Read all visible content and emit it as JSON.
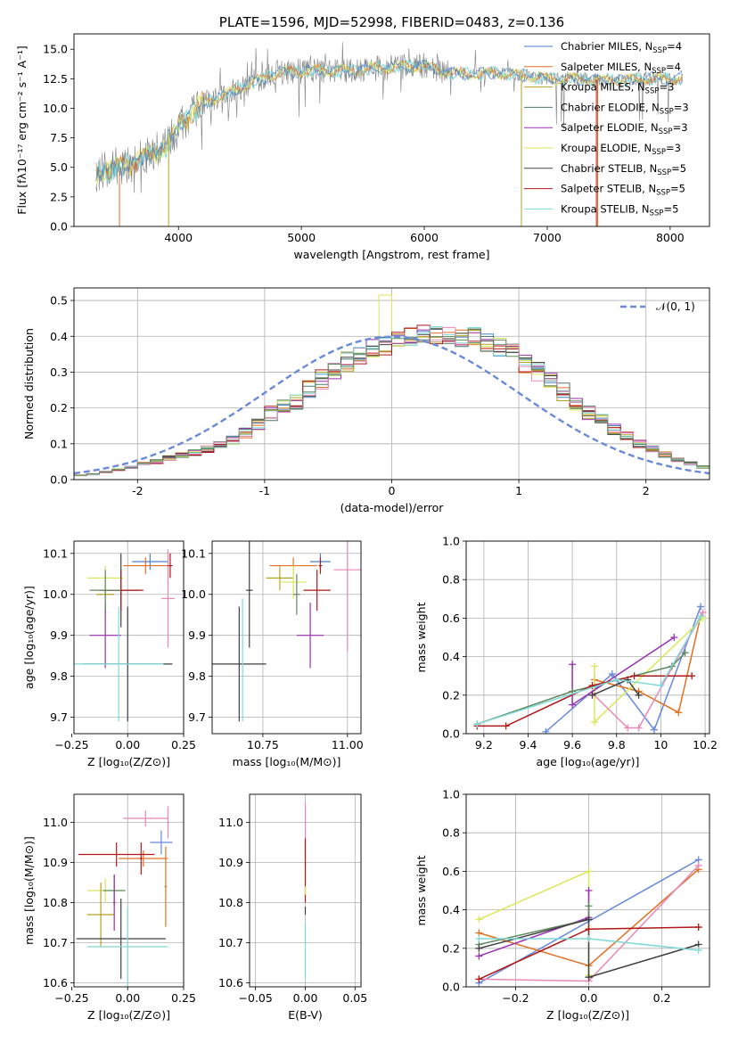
{
  "colors": {
    "Chabrier MILES": "#4682c8",
    "Salpeter MILES": "#e07020",
    "Kroupa MILES": "#b8a020",
    "Chabrier ELODIE": "#4a7a6a",
    "Salpeter ELODIE": "#9a30b0",
    "Kroupa ELODIE": "#d8e858",
    "Chabrier STELIB": "#404040",
    "Salpeter STELIB": "#b01818",
    "Kroupa STELIB": "#80d8d8",
    "extra_blue": "#6688dd",
    "extra_pink": "#e888b8",
    "extra_green": "#608a60",
    "gauss": "#6a8ad8"
  },
  "chart_data": [
    {
      "id": "spectrum",
      "type": "line",
      "title": "PLATE=1596, MJD=52998, FIBERID=0483, z=0.136",
      "xlabel": "wavelength [Angstrom, rest frame]",
      "ylabel": "Flux [fλ10⁻¹⁷ erg cm⁻² s⁻¹ A⁻¹]",
      "xlim": [
        3150,
        8320
      ],
      "ylim": [
        0,
        16.3
      ],
      "xticks": [
        4000,
        5000,
        6000,
        7000,
        8000
      ],
      "yticks": [
        0.0,
        2.5,
        5.0,
        7.5,
        10.0,
        12.5,
        15.0
      ],
      "grid": false,
      "legend_position": "top-right",
      "continuum_x": [
        3330,
        3500,
        3700,
        3900,
        4000,
        4200,
        4400,
        4600,
        4800,
        5000,
        5200,
        5400,
        5600,
        5800,
        6000,
        6200,
        6400,
        6600,
        6800,
        7000,
        7200,
        7400,
        7600,
        7800,
        8000,
        8100
      ],
      "continuum_y": [
        4.6,
        4.9,
        5.8,
        6.8,
        8.4,
        10.4,
        11.2,
        12.2,
        13.0,
        13.1,
        13.2,
        13.2,
        13.4,
        13.5,
        13.6,
        13.0,
        12.9,
        13.0,
        12.8,
        12.5,
        12.5,
        12.4,
        12.4,
        12.5,
        12.5,
        12.6
      ],
      "legend": [
        {
          "label": "Chabrier MILES, N",
          "sub": "SSP",
          "suffix": "=4"
        },
        {
          "label": "Salpeter MILES, N",
          "sub": "SSP",
          "suffix": "=4"
        },
        {
          "label": "Kroupa MILES, N",
          "sub": "SSP",
          "suffix": "=3"
        },
        {
          "label": "Chabrier ELODIE, N",
          "sub": "SSP",
          "suffix": "=3"
        },
        {
          "label": "Salpeter ELODIE, N",
          "sub": "SSP",
          "suffix": "=3"
        },
        {
          "label": "Kroupa ELODIE, N",
          "sub": "SSP",
          "suffix": "=3"
        },
        {
          "label": "Chabrier STELIB, N",
          "sub": "SSP",
          "suffix": "=5"
        },
        {
          "label": "Salpeter STELIB, N",
          "sub": "SSP",
          "suffix": "=5"
        },
        {
          "label": "Kroupa STELIB, N",
          "sub": "SSP",
          "suffix": "=5"
        }
      ]
    },
    {
      "id": "residuals",
      "type": "line",
      "xlabel": "(data-model)/error",
      "ylabel": "Normed distribution",
      "xlim": [
        -2.5,
        2.5
      ],
      "ylim": [
        0,
        0.535
      ],
      "xticks": [
        -2,
        -1,
        0,
        1,
        2
      ],
      "yticks": [
        0.0,
        0.1,
        0.2,
        0.3,
        0.4,
        0.5
      ],
      "grid": true,
      "legend_position": "top-right",
      "legend": [
        "𝒩(0, 1)"
      ],
      "bin_edges_start": -2.5,
      "bin_width": 0.1,
      "base_hist": [
        0.012,
        0.015,
        0.022,
        0.028,
        0.035,
        0.045,
        0.05,
        0.06,
        0.068,
        0.075,
        0.085,
        0.095,
        0.11,
        0.13,
        0.155,
        0.185,
        0.2,
        0.215,
        0.25,
        0.28,
        0.3,
        0.33,
        0.35,
        0.37,
        0.37,
        0.39,
        0.4,
        0.41,
        0.4,
        0.405,
        0.39,
        0.4,
        0.385,
        0.37,
        0.355,
        0.325,
        0.3,
        0.27,
        0.245,
        0.215,
        0.185,
        0.165,
        0.14,
        0.12,
        0.1,
        0.085,
        0.07,
        0.055,
        0.045,
        0.035
      ]
    },
    {
      "id": "age-vs-Z",
      "type": "scatter",
      "xlabel": "Z [log₁₀(Z/Z⊙)]",
      "ylabel": "age  [log₁₀(age/yr)]",
      "xlim": [
        -0.24,
        0.25
      ],
      "ylim": [
        9.66,
        10.13
      ],
      "xticks": [
        -0.25,
        0.0,
        0.25
      ],
      "xticklabels": [
        "−0.25",
        "0.00",
        "0.25"
      ],
      "yticks": [
        9.7,
        9.8,
        9.9,
        10.0,
        10.1
      ],
      "grid": true,
      "points": [
        {
          "series": "Chabrier MILES",
          "x": 0.1,
          "xerr": 0.08,
          "y": 10.08,
          "yerr": 0.02
        },
        {
          "series": "Salpeter MILES",
          "x": 0.08,
          "xerr": 0.1,
          "y": 10.07,
          "yerr": 0.02
        },
        {
          "series": "Kroupa MILES",
          "x": -0.1,
          "xerr": 0.04,
          "y": 10.0,
          "yerr": 0.05
        },
        {
          "series": "extra_pink",
          "x": 0.18,
          "xerr": 0.03,
          "y": 9.99,
          "yerr": 0.12
        },
        {
          "series": "Kroupa ELODIE",
          "x": -0.1,
          "xerr": 0.08,
          "y": 10.04,
          "yerr": 0.03
        },
        {
          "series": "Salpeter ELODIE",
          "x": -0.1,
          "xerr": 0.07,
          "y": 9.9,
          "yerr": 0.08
        },
        {
          "series": "Chabrier STELIB",
          "x": 0.0,
          "xerr": 0.2,
          "y": 9.83,
          "yerr": 0.14
        },
        {
          "series": "Chabrier STELIB",
          "x": -0.03,
          "xerr": 0.08,
          "y": 10.01,
          "yerr": 0.09
        },
        {
          "series": "Salpeter STELIB",
          "x": -0.03,
          "xerr": 0.1,
          "y": 10.01,
          "yerr": 0.05
        },
        {
          "series": "Salpeter STELIB",
          "x": 0.19,
          "xerr": 0.01,
          "y": 10.07,
          "yerr": 0.03
        },
        {
          "series": "Kroupa STELIB",
          "x": -0.04,
          "xerr": 0.2,
          "y": 9.83,
          "yerr": 0.14
        },
        {
          "series": "extra_green",
          "x": -0.1,
          "xerr": 0.07,
          "y": 10.01,
          "yerr": 0.05
        }
      ]
    },
    {
      "id": "age-vs-mass",
      "type": "scatter",
      "xlabel": "mass [log₁₀(M/M⊙)]",
      "ylabel": "",
      "xlim": [
        10.6,
        11.04
      ],
      "ylim": [
        9.66,
        10.13
      ],
      "xticks": [
        10.75,
        11.0
      ],
      "xticklabels": [
        "10.75",
        "11.00"
      ],
      "yticks": [
        9.7,
        9.8,
        9.9,
        10.0,
        10.1
      ],
      "grid": true,
      "points": [
        {
          "series": "Chabrier MILES",
          "x": 10.92,
          "xerr": 0.03,
          "y": 10.08,
          "yerr": 0.02
        },
        {
          "series": "Salpeter MILES",
          "x": 10.84,
          "xerr": 0.07,
          "y": 10.07,
          "yerr": 0.02
        },
        {
          "series": "Kroupa MILES",
          "x": 10.8,
          "xerr": 0.04,
          "y": 10.04,
          "yerr": 0.03
        },
        {
          "series": "extra_pink",
          "x": 11.0,
          "xerr": 0.04,
          "y": 10.06,
          "yerr": 0.2
        },
        {
          "series": "Kroupa ELODIE",
          "x": 10.84,
          "xerr": 0.04,
          "y": 10.03,
          "yerr": 0.04
        },
        {
          "series": "Salpeter ELODIE",
          "x": 10.89,
          "xerr": 0.04,
          "y": 9.9,
          "yerr": 0.08
        },
        {
          "series": "Chabrier STELIB",
          "x": 10.68,
          "xerr": 0.08,
          "y": 9.83,
          "yerr": 0.14
        },
        {
          "series": "Chabrier STELIB",
          "x": 10.71,
          "xerr": 0.01,
          "y": 10.01,
          "yerr": 0.14
        },
        {
          "series": "Salpeter STELIB",
          "x": 10.91,
          "xerr": 0.04,
          "y": 10.01,
          "yerr": 0.05
        },
        {
          "series": "Salpeter STELIB",
          "x": 10.92,
          "xerr": 0.005,
          "y": 10.07,
          "yerr": 0.02
        },
        {
          "series": "Kroupa STELIB",
          "x": 10.69,
          "xerr": 0.0,
          "y": 9.84,
          "yerr": 0.15
        },
        {
          "series": "extra_green",
          "x": 10.85,
          "xerr": 0.01,
          "y": 10.0,
          "yerr": 0.05
        }
      ]
    },
    {
      "id": "massweight-vs-age",
      "type": "line",
      "xlabel": "age  [log₁₀(age/yr)]",
      "ylabel": "mass weight",
      "xlim": [
        9.12,
        10.22
      ],
      "ylim": [
        0,
        1.0
      ],
      "xticks": [
        9.2,
        9.4,
        9.6,
        9.8,
        10.0,
        10.2
      ],
      "yticks": [
        0.0,
        0.2,
        0.4,
        0.6,
        0.8,
        1.0
      ],
      "grid": true,
      "series": [
        {
          "name": "extra_blue",
          "x": [
            9.48,
            9.78,
            9.97,
            10.18
          ],
          "y": [
            0.01,
            0.31,
            0.02,
            0.66
          ]
        },
        {
          "name": "Salpeter MILES",
          "x": [
            9.7,
            9.9,
            10.08,
            10.18
          ],
          "y": [
            0.28,
            0.22,
            0.11,
            0.61
          ]
        },
        {
          "name": "Kroupa ELODIE",
          "x": [
            9.7,
            9.7,
            10.19
          ],
          "y": [
            0.35,
            0.06,
            0.6
          ]
        },
        {
          "name": "extra_pink",
          "x": [
            9.69,
            9.85,
            9.9,
            10.19
          ],
          "y": [
            0.21,
            0.03,
            0.03,
            0.63
          ]
        },
        {
          "name": "Salpeter ELODIE",
          "x": [
            9.6,
            9.6,
            10.06
          ],
          "y": [
            0.36,
            0.15,
            0.5
          ]
        },
        {
          "name": "extra_green",
          "x": [
            9.17,
            9.6,
            10.05,
            10.11
          ],
          "y": [
            0.05,
            0.22,
            0.35,
            0.42
          ]
        },
        {
          "name": "Chabrier STELIB",
          "x": [
            9.69,
            9.85,
            9.9
          ],
          "y": [
            0.2,
            0.28,
            0.2
          ]
        },
        {
          "name": "Salpeter STELIB",
          "x": [
            9.17,
            9.3,
            9.69,
            9.88,
            10.14
          ],
          "y": [
            0.04,
            0.04,
            0.25,
            0.3,
            0.3
          ]
        },
        {
          "name": "Kroupa STELIB",
          "x": [
            9.17,
            9.8,
            10.0,
            10.18
          ],
          "y": [
            0.05,
            0.28,
            0.25,
            0.61
          ]
        }
      ]
    },
    {
      "id": "mass-vs-Z",
      "type": "scatter",
      "xlabel": "Z [log₁₀(Z/Z⊙)]",
      "ylabel": "mass [log₁₀(M/M⊙)]",
      "xlim": [
        -0.24,
        0.25
      ],
      "ylim": [
        10.59,
        11.07
      ],
      "xticks": [
        -0.25,
        0.0,
        0.25
      ],
      "xticklabels": [
        "−0.25",
        "0.00",
        "0.25"
      ],
      "yticks": [
        10.6,
        10.7,
        10.8,
        10.9,
        11.0
      ],
      "grid": true,
      "points": [
        {
          "series": "extra_blue",
          "x": 0.15,
          "xerr": 0.05,
          "y": 10.95,
          "yerr": 0.03
        },
        {
          "series": "Salpeter MILES",
          "x": 0.07,
          "xerr": 0.11,
          "y": 10.91,
          "yerr": 0.02
        },
        {
          "series": "Salpeter MILES",
          "x": 0.17,
          "xerr": 0.005,
          "y": 10.84,
          "yerr": 0.1
        },
        {
          "series": "Kroupa ELODIE",
          "x": -0.1,
          "xerr": 0.08,
          "y": 10.83,
          "yerr": 0.03
        },
        {
          "series": "Kroupa MILES",
          "x": -0.12,
          "xerr": 0.06,
          "y": 10.77,
          "yerr": 0.08
        },
        {
          "series": "extra_pink",
          "x": 0.08,
          "xerr": 0.1,
          "y": 11.01,
          "yerr": 0.02
        },
        {
          "series": "extra_pink",
          "x": 0.18,
          "xerr": 0.005,
          "y": 11.0,
          "yerr": 0.04
        },
        {
          "series": "extra_green",
          "x": -0.06,
          "xerr": 0.05,
          "y": 10.83,
          "yerr": 0.04
        },
        {
          "series": "Salpeter ELODIE",
          "x": -0.06,
          "xerr": 0.005,
          "y": 10.8,
          "yerr": 0.07
        },
        {
          "series": "Chabrier STELIB",
          "x": -0.03,
          "xerr": 0.2,
          "y": 10.71,
          "yerr": 0.1
        },
        {
          "series": "Salpeter STELIB",
          "x": -0.05,
          "xerr": 0.17,
          "y": 10.92,
          "yerr": 0.03
        },
        {
          "series": "Salpeter STELIB",
          "x": 0.06,
          "xerr": 0.005,
          "y": 10.91,
          "yerr": 0.04
        },
        {
          "series": "Kroupa STELIB",
          "x": 0.0,
          "xerr": 0.18,
          "y": 10.69,
          "yerr": 0.1
        }
      ]
    },
    {
      "id": "mass-vs-EBV",
      "type": "scatter",
      "xlabel": "E(B-V)",
      "ylabel": "",
      "xlim": [
        -0.056,
        0.056
      ],
      "ylim": [
        10.59,
        11.07
      ],
      "xticks": [
        -0.05,
        0.0,
        0.05
      ],
      "xticklabels": [
        "−0.05",
        "0.00",
        "0.05"
      ],
      "yticks": [
        10.6,
        10.7,
        10.8,
        10.9,
        11.0
      ],
      "grid": true,
      "points": [
        {
          "series": "extra_pink",
          "x": 0.0,
          "xerr": 0.0,
          "y": 10.97,
          "yerr": 0.08
        },
        {
          "series": "Salpeter STELIB",
          "x": 0.0,
          "xerr": 0.0,
          "y": 10.88,
          "yerr": 0.08
        },
        {
          "series": "Kroupa ELODIE",
          "x": 0.0,
          "xerr": 0.0,
          "y": 10.83,
          "yerr": 0.01
        },
        {
          "series": "Chabrier STELIB",
          "x": 0.0,
          "xerr": 0.0,
          "y": 10.78,
          "yerr": 0.01
        },
        {
          "series": "Kroupa STELIB",
          "x": 0.0,
          "xerr": 0.0,
          "y": 10.68,
          "yerr": 0.07
        }
      ]
    },
    {
      "id": "massweight-vs-Z",
      "type": "line",
      "xlabel": "Z [log₁₀(Z/Z⊙)]",
      "ylabel": "mass weight",
      "xlim": [
        -0.335,
        0.33
      ],
      "ylim": [
        0,
        1.0
      ],
      "xticks": [
        -0.2,
        0.0,
        0.2
      ],
      "xticklabels": [
        "−0.2",
        "0.0",
        "0.2"
      ],
      "yticks": [
        0.0,
        0.2,
        0.4,
        0.6,
        0.8,
        1.0
      ],
      "grid": true,
      "series": [
        {
          "name": "extra_blue",
          "x": [
            -0.3,
            0.3
          ],
          "y": [
            0.02,
            0.66
          ]
        },
        {
          "name": "Salpeter MILES",
          "x": [
            -0.3,
            0.0,
            0.3
          ],
          "y": [
            0.28,
            0.11,
            0.61
          ]
        },
        {
          "name": "Kroupa ELODIE",
          "x": [
            -0.3,
            0.0,
            0.0
          ],
          "y": [
            0.35,
            0.6,
            0.06
          ]
        },
        {
          "name": "extra_pink",
          "x": [
            -0.3,
            0.0,
            0.3
          ],
          "y": [
            0.04,
            0.03,
            0.63
          ]
        },
        {
          "name": "Salpeter ELODIE",
          "x": [
            -0.3,
            0.0,
            0.0
          ],
          "y": [
            0.16,
            0.36,
            0.5
          ]
        },
        {
          "name": "extra_green",
          "x": [
            -0.3,
            0.0,
            0.0
          ],
          "y": [
            0.22,
            0.35,
            0.42
          ]
        },
        {
          "name": "Chabrier STELIB",
          "x": [
            -0.3,
            0.0,
            0.0,
            0.3
          ],
          "y": [
            0.2,
            0.35,
            0.05,
            0.22
          ]
        },
        {
          "name": "Salpeter STELIB",
          "x": [
            -0.3,
            0.0,
            0.3
          ],
          "y": [
            0.04,
            0.3,
            0.31
          ]
        },
        {
          "name": "Kroupa STELIB",
          "x": [
            -0.3,
            0.0,
            0.3
          ],
          "y": [
            0.25,
            0.25,
            0.19
          ]
        }
      ]
    }
  ]
}
